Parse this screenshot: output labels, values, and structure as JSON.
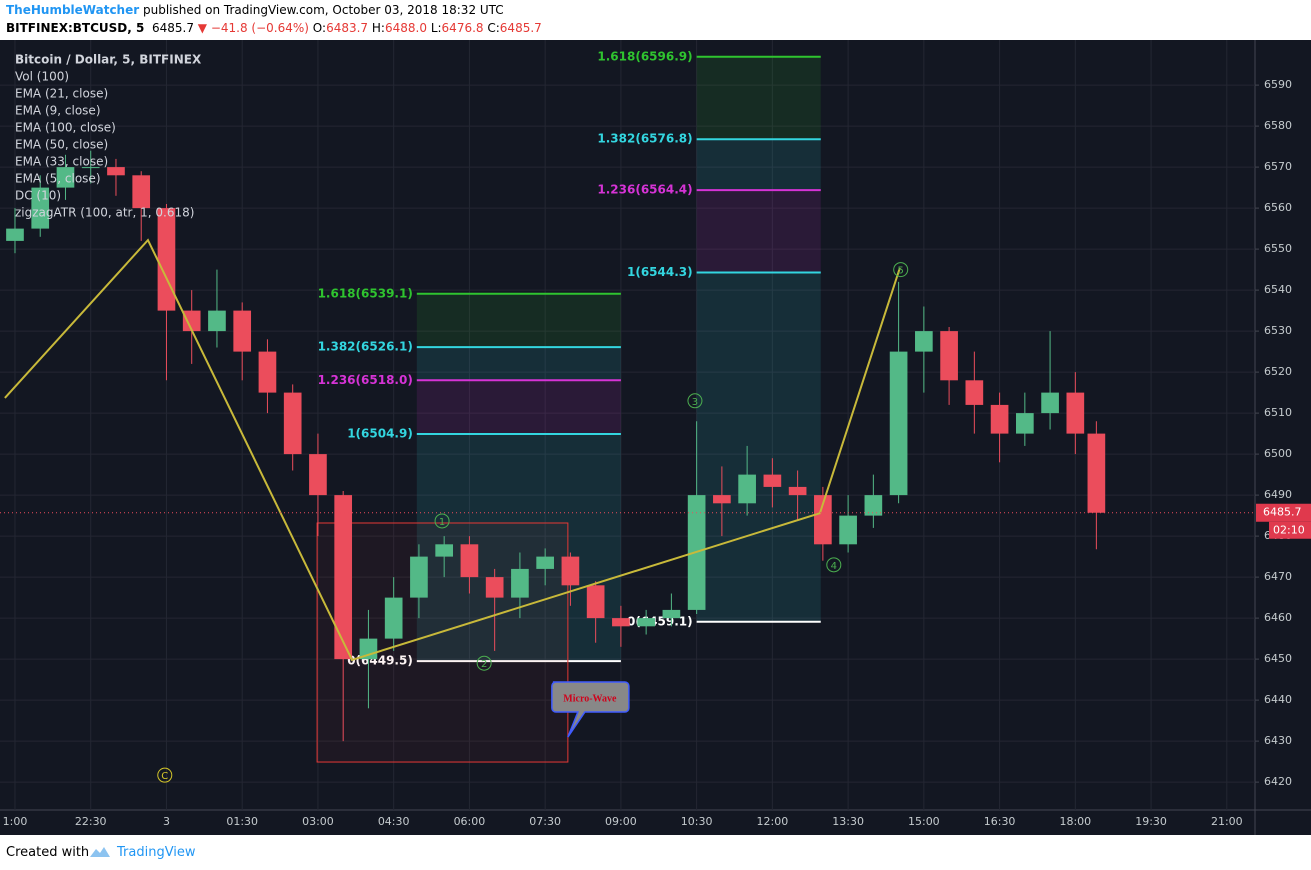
{
  "header": {
    "author": "TheHumbleWatcher",
    "published": "published on TradingView.com, October 03, 2018 18:32 UTC",
    "symbol": "BITFINEX:BTCUSD, 5",
    "price": "6485.7",
    "change": "▼ −41.8 (−0.64%)",
    "ohlc": [
      {
        "key": "O:",
        "value": "6483.7"
      },
      {
        "key": "H:",
        "value": "6488.0"
      },
      {
        "key": "L:",
        "value": "6476.8"
      },
      {
        "key": "C:",
        "value": "6485.7"
      }
    ]
  },
  "chart_data": {
    "type": "candlestick",
    "legend": [
      "Bitcoin / Dollar, 5, BITFINEX",
      "Vol (100)",
      "EMA (21, close)",
      "EMA (9, close)",
      "EMA (100, close)",
      "EMA (50, close)",
      "EMA (33, close)",
      "EMA (5, close)",
      "DC (10)",
      "zigzagATR (100, atr, 1, 0.618)"
    ],
    "x": [
      0,
      6,
      12,
      18,
      24,
      30,
      36,
      42,
      48,
      54,
      60,
      66,
      72,
      78,
      84,
      90,
      96,
      102,
      108,
      114,
      120,
      126,
      132,
      138,
      144,
      150,
      156,
      162,
      168,
      174,
      180,
      186,
      192,
      198,
      204,
      210,
      216,
      222,
      228,
      234,
      240,
      246,
      252,
      257
    ],
    "open": [
      6552,
      6555,
      6565,
      6570,
      6570,
      6568,
      6560,
      6535,
      6530,
      6535,
      6525,
      6515,
      6500,
      6490,
      6450,
      6455,
      6465,
      6475,
      6478,
      6470,
      6465,
      6472,
      6475,
      6468,
      6460,
      6458,
      6460,
      6462,
      6490,
      6488,
      6495,
      6492,
      6490,
      6478,
      6485,
      6490,
      6525,
      6530,
      6518,
      6512,
      6505,
      6510,
      6515,
      6505
    ],
    "high": [
      6560,
      6568,
      6573,
      6574,
      6572,
      6569,
      6561,
      6540,
      6545,
      6537,
      6528,
      6517,
      6505,
      6491,
      6462,
      6470,
      6478,
      6480,
      6480,
      6472,
      6476,
      6477,
      6476,
      6469,
      6463,
      6462,
      6466,
      6508,
      6497,
      6502,
      6499,
      6496,
      6492,
      6490,
      6495,
      6542,
      6536,
      6531,
      6525,
      6515,
      6515,
      6530,
      6520,
      6508
    ],
    "low": [
      6549,
      6553,
      6562,
      6566,
      6563,
      6552,
      6518,
      6522,
      6526,
      6518,
      6510,
      6496,
      6480,
      6430,
      6438,
      6452,
      6460,
      6470,
      6466,
      6452,
      6460,
      6468,
      6463,
      6454,
      6453,
      6456,
      6458,
      6461,
      6480,
      6485,
      6487,
      6484,
      6474,
      6476,
      6482,
      6488,
      6515,
      6512,
      6505,
      6498,
      6502,
      6506,
      6500,
      6476.8
    ],
    "close": [
      6555,
      6565,
      6570,
      6570,
      6568,
      6560,
      6535,
      6530,
      6535,
      6525,
      6515,
      6500,
      6490,
      6450,
      6455,
      6465,
      6475,
      6478,
      6470,
      6465,
      6472,
      6475,
      6468,
      6460,
      6458,
      6460,
      6462,
      6490,
      6488,
      6495,
      6492,
      6490,
      6478,
      6485,
      6490,
      6525,
      6530,
      6518,
      6512,
      6505,
      6510,
      6515,
      6505,
      6485.7
    ],
    "up_color": "#53b987",
    "down_color": "#eb4d5c",
    "xlim": [
      -3.56,
      294.7
    ],
    "ylim": [
      6413.2,
      6601
    ],
    "xticks": [
      {
        "value": 0,
        "label": "1:00"
      },
      {
        "value": 18,
        "label": "22:30"
      },
      {
        "value": 36,
        "label": "3"
      },
      {
        "value": 54,
        "label": "01:30"
      },
      {
        "value": 72,
        "label": "03:00"
      },
      {
        "value": 90,
        "label": "04:30"
      },
      {
        "value": 108,
        "label": "06:00"
      },
      {
        "value": 126,
        "label": "07:30"
      },
      {
        "value": 144,
        "label": "09:00"
      },
      {
        "value": 162,
        "label": "10:30"
      },
      {
        "value": 180,
        "label": "12:00"
      },
      {
        "value": 198,
        "label": "13:30"
      },
      {
        "value": 216,
        "label": "15:00"
      },
      {
        "value": 234,
        "label": "16:30"
      },
      {
        "value": 252,
        "label": "18:00"
      },
      {
        "value": 270,
        "label": "19:30"
      },
      {
        "value": 288,
        "label": "21:00"
      }
    ],
    "yticks": [
      6420,
      6430,
      6440,
      6450,
      6460,
      6470,
      6480,
      6490,
      6500,
      6510,
      6520,
      6530,
      6540,
      6550,
      6560,
      6570,
      6580,
      6590
    ],
    "grid": true,
    "last_price": 6485.7,
    "countdown": "02:10",
    "fib_sets": [
      {
        "x": [
          95.5,
          144
        ],
        "levels": [
          {
            "label": "1.618(6539.1)",
            "value": 6539.1,
            "color": "#2fc42f"
          },
          {
            "label": "1.382(6526.1)",
            "value": 6526.1,
            "color": "#33d6e0"
          },
          {
            "label": "1.236(6518.0)",
            "value": 6518.0,
            "color": "#d633d6"
          },
          {
            "label": "1(6504.9)",
            "value": 6504.9,
            "color": "#33d6e0"
          },
          {
            "label": "0(6449.5)",
            "value": 6449.5,
            "color": "#ffffff"
          }
        ]
      },
      {
        "x": [
          162,
          191.5
        ],
        "levels": [
          {
            "label": "1.618(6596.9)",
            "value": 6596.9,
            "color": "#2fc42f"
          },
          {
            "label": "1.382(6576.8)",
            "value": 6576.8,
            "color": "#33d6e0"
          },
          {
            "label": "1.236(6564.4)",
            "value": 6564.4,
            "color": "#d633d6"
          },
          {
            "label": "1(6544.3)",
            "value": 6544.3,
            "color": "#33d6e0"
          },
          {
            "label": "0(6459.1)",
            "value": 6459.1,
            "color": "#ffffff"
          }
        ]
      }
    ],
    "waves": [
      {
        "label": "1",
        "x": 101.5,
        "y": 6483.7,
        "color": "#4caf50"
      },
      {
        "label": "2",
        "x": 111.5,
        "y": 6449,
        "color": "#4caf50"
      },
      {
        "label": "3",
        "x": 161.6,
        "y": 6513,
        "color": "#4caf50"
      },
      {
        "label": "4",
        "x": 194.6,
        "y": 6473,
        "color": "#4caf50"
      },
      {
        "label": "5",
        "x": 210.5,
        "y": 6545,
        "color": "#4caf50"
      },
      {
        "label": "C",
        "x": 35.6,
        "y": 6421.7,
        "color": "#d4c62a"
      }
    ],
    "zigzag": {
      "x": [
        -2.4,
        31.6,
        80.1,
        191.3,
        210.3
      ],
      "y": [
        6513.7,
        6552.2,
        6449.8,
        6485.6,
        6545.4
      ],
      "color": "#c8b93a"
    },
    "box": {
      "x": [
        71.8,
        131.4
      ],
      "y": [
        6424.9,
        6483.2
      ],
      "color": "#e53935"
    },
    "callout": "Micro-Wave"
  },
  "footer": {
    "created": "Created with",
    "brand": "TradingView"
  }
}
